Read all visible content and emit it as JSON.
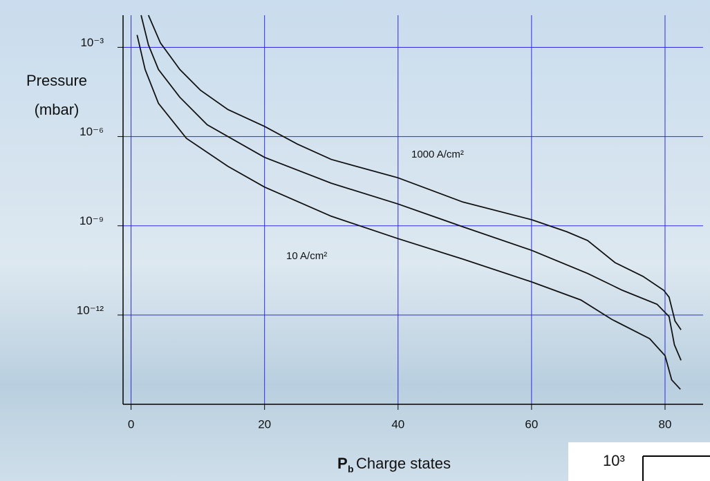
{
  "chart_data": {
    "type": "line",
    "log_y": true,
    "grid": true,
    "grid_color": "#2a2ae8",
    "ylabel": [
      "Pressure",
      "(mbar)"
    ],
    "xlabel": {
      "symbol": "P",
      "subscript": "b",
      "text": "Charge states"
    },
    "xlim": [
      -1.2,
      85.7
    ],
    "xticks": [
      0,
      20,
      40,
      60,
      80
    ],
    "ylim": [
      1e-15,
      0.012
    ],
    "yticks": [
      {
        "value": 0.001,
        "label": "10⁻³"
      },
      {
        "value": 1e-06,
        "label": "10⁻⁶"
      },
      {
        "value": 1e-09,
        "label": "10⁻⁹"
      },
      {
        "value": 1e-12,
        "label": "10⁻¹²"
      }
    ],
    "series": [
      {
        "color": "#111111",
        "x": [
          2.6,
          4.4,
          7.3,
          10.4,
          14.5,
          20,
          24.9,
          30,
          40,
          49.7,
          60,
          65.3,
          68.4,
          72.5,
          76.7,
          79.8,
          80.6,
          81.5,
          82.4
        ],
        "values": [
          0.012,
          0.0014,
          0.00018,
          3.6e-05,
          8.1e-06,
          2.2e-06,
          5.6e-07,
          1.7e-07,
          4.1e-08,
          6.3e-09,
          1.6e-09,
          6.3e-10,
          3.2e-10,
          5.8e-11,
          2e-11,
          6.8e-12,
          4e-12,
          6.3e-13,
          3.2e-13
        ]
      },
      {
        "color": "#111111",
        "x": [
          1.5,
          2.6,
          4.1,
          7.3,
          11.4,
          20,
          30,
          40,
          49.7,
          60,
          68.4,
          73.6,
          78.8,
          80.6,
          81.4,
          82.4
        ],
        "values": [
          0.012,
          0.0012,
          0.00018,
          2.1e-05,
          2.5e-06,
          2e-07,
          2.7e-08,
          5.4e-09,
          9.3e-10,
          1.5e-10,
          2.5e-11,
          6.8e-12,
          2.3e-12,
          8.9e-13,
          1e-13,
          3e-14
        ]
      },
      {
        "color": "#111111",
        "x": [
          0.9,
          2.1,
          4.1,
          8.3,
          14.5,
          20,
          30,
          40,
          49.7,
          60,
          67.4,
          72,
          77.7,
          80,
          81,
          82.3
        ],
        "values": [
          0.0026,
          0.00018,
          1.3e-05,
          8.7e-07,
          1e-07,
          2e-08,
          2.1e-09,
          3.7e-10,
          7.6e-11,
          1.3e-11,
          3.2e-12,
          7.2e-13,
          1.6e-13,
          4.3e-14,
          6.6e-15,
          3.2e-15
        ]
      }
    ],
    "annotations": [
      "1000 A/cm²",
      "10 A/cm²"
    ],
    "inset_label": "10³"
  }
}
